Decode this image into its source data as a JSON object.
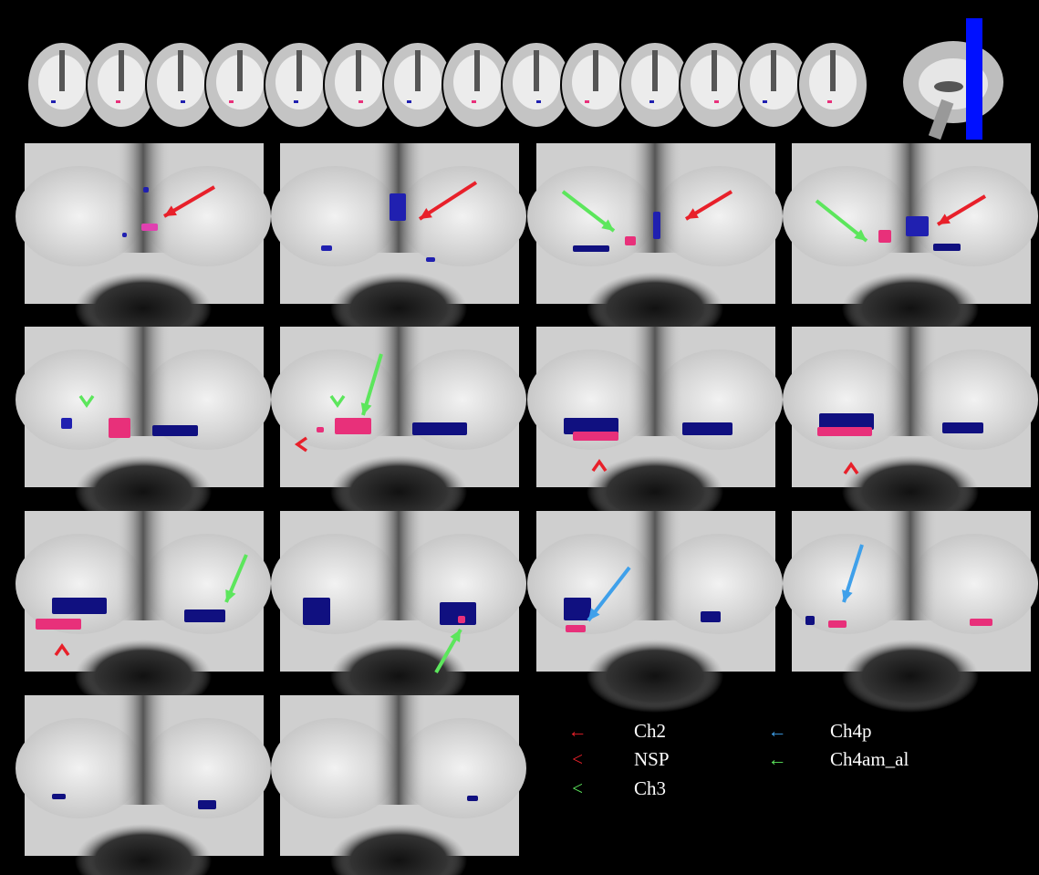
{
  "legend": [
    {
      "symbol": "←",
      "label": "Ch2",
      "color": "#e8202a"
    },
    {
      "symbol": "<",
      "label": "NSP",
      "color": "#e8202a"
    },
    {
      "symbol": "<",
      "label": "Ch3",
      "color": "#5ce65c"
    },
    {
      "symbol": "←",
      "label": "Ch4p",
      "color": "#3fa0ea"
    },
    {
      "symbol": "←",
      "label": "Ch4am_al",
      "color": "#5ce65c"
    }
  ]
}
